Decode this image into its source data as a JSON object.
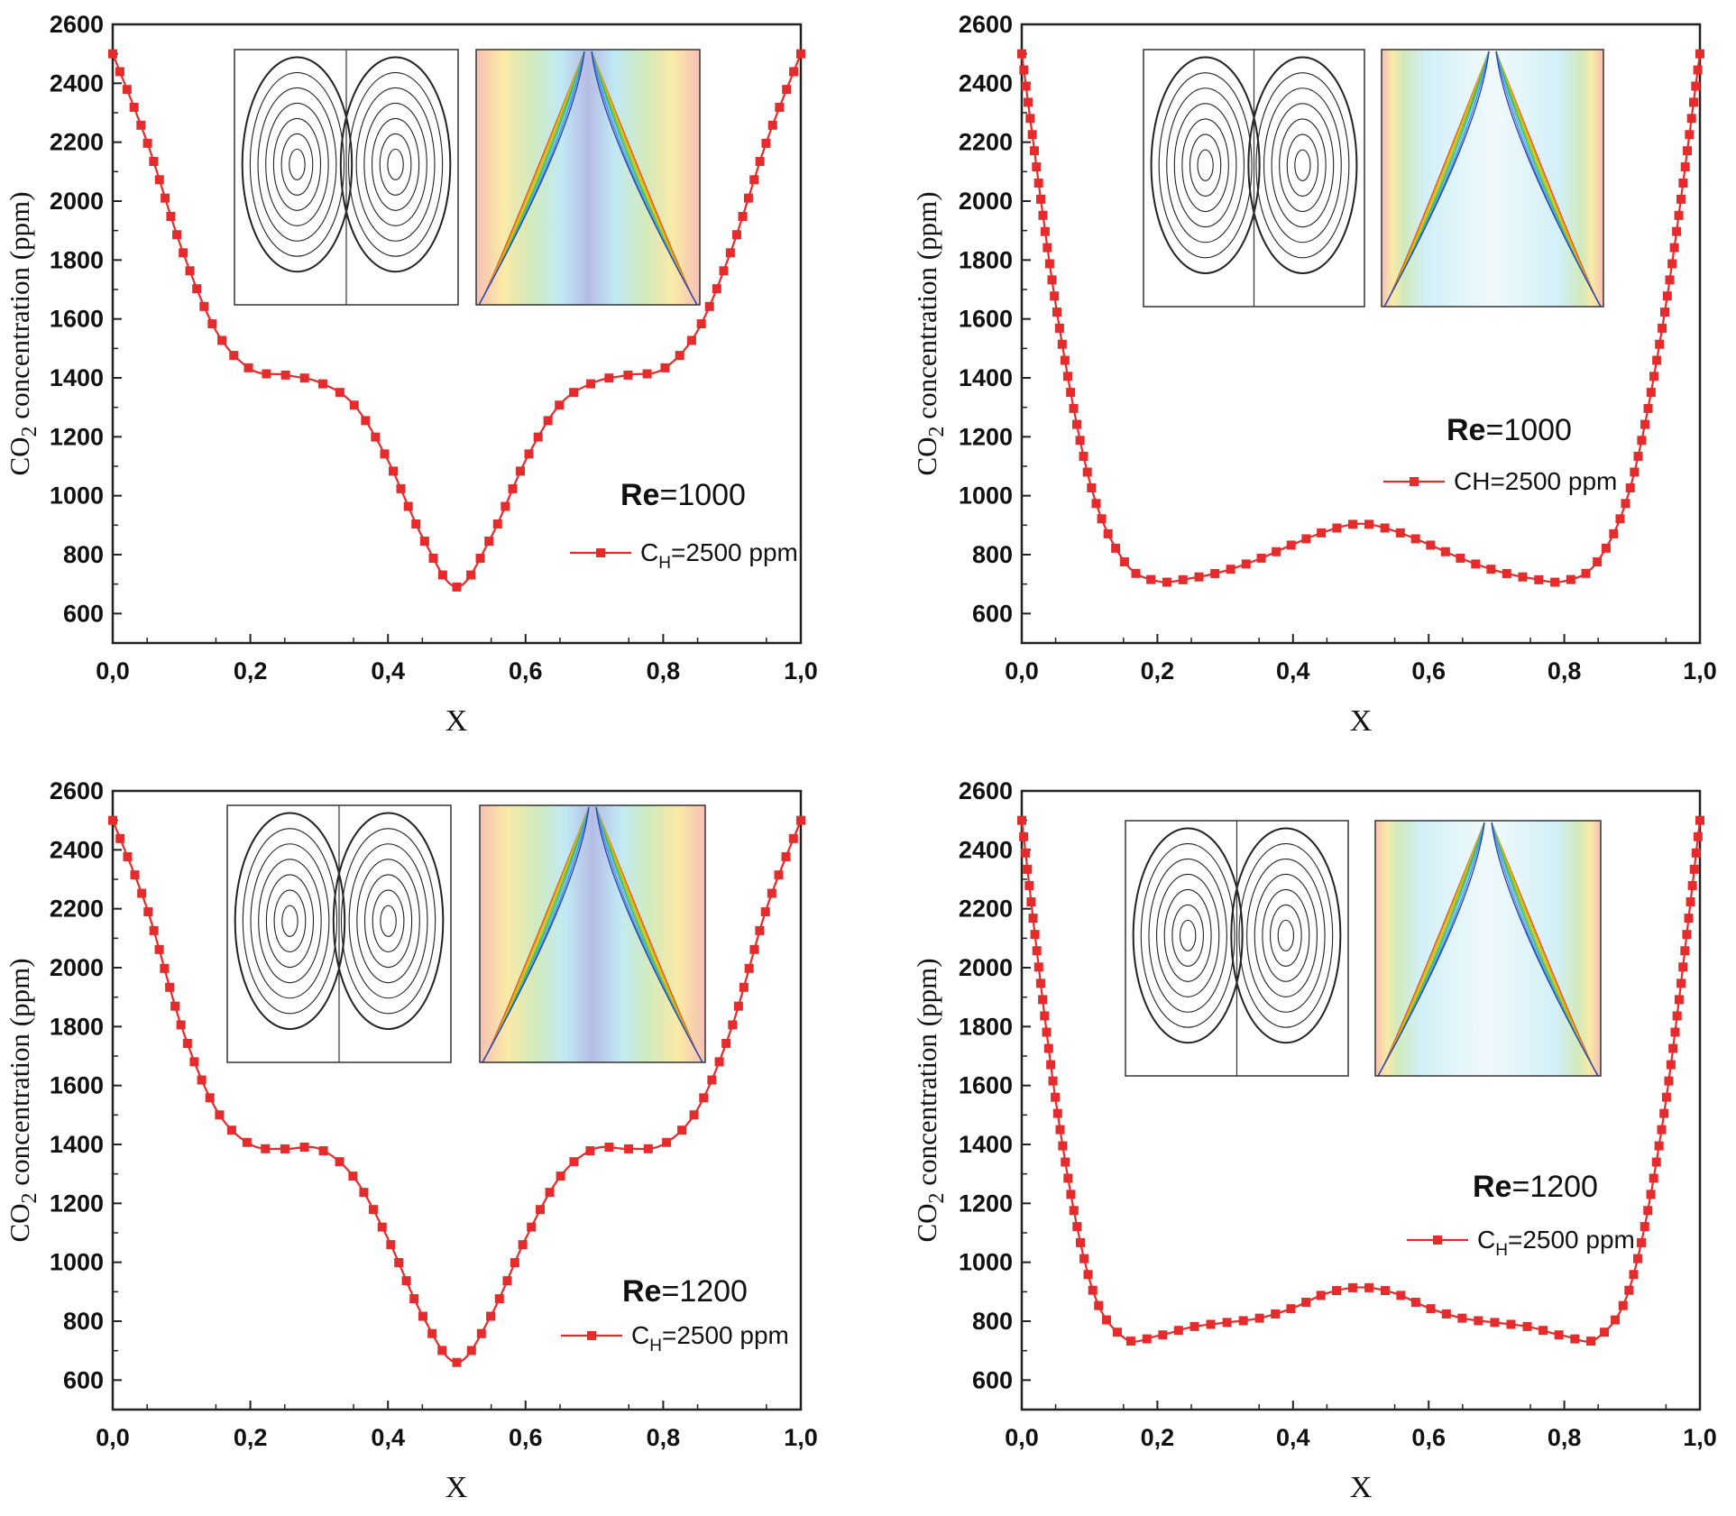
{
  "chart_data": [
    {
      "type": "line",
      "panel": "top-left",
      "title": "",
      "xlabel": "X",
      "ylabel": "CO2 concentration (ppm)",
      "ylabel_parts": {
        "pre": "CO",
        "sub": "2",
        "post": " concentration (ppm)"
      },
      "xlim": [
        0,
        1
      ],
      "ylim": [
        500,
        2600
      ],
      "xticks": [
        "0,0",
        "0,2",
        "0,4",
        "0,6",
        "0,8",
        "1,0"
      ],
      "yticks": [
        "600",
        "800",
        "1000",
        "1200",
        "1400",
        "1600",
        "1800",
        "2000",
        "2200",
        "2400",
        "2600"
      ],
      "annotation": {
        "bold": "Re",
        "rest": "=1000"
      },
      "legend": {
        "pre": "C",
        "sub": "H",
        "post": "=2500 ppm"
      },
      "series_color": "#e52b2b",
      "marker_style": "sparse",
      "x": [
        0.0,
        0.05,
        0.1,
        0.15,
        0.2,
        0.25,
        0.3,
        0.35,
        0.4,
        0.45,
        0.5,
        0.55,
        0.6,
        0.65,
        0.7,
        0.75,
        0.8,
        0.85,
        0.9,
        0.95,
        1.0
      ],
      "values": [
        2500,
        2200,
        1840,
        1560,
        1430,
        1410,
        1385,
        1310,
        1120,
        860,
        690,
        860,
        1120,
        1310,
        1385,
        1410,
        1430,
        1560,
        1840,
        2200,
        2500
      ]
    },
    {
      "type": "line",
      "panel": "top-right",
      "title": "",
      "xlabel": "X",
      "ylabel": "CO2 concentration (ppm)",
      "ylabel_parts": {
        "pre": "CO",
        "sub": "2",
        "post": " concentration (ppm)"
      },
      "xlim": [
        0,
        1
      ],
      "ylim": [
        500,
        2600
      ],
      "xticks": [
        "0,0",
        "0,2",
        "0,4",
        "0,6",
        "0,8",
        "1,0"
      ],
      "yticks": [
        "600",
        "800",
        "1000",
        "1200",
        "1400",
        "1600",
        "1800",
        "2000",
        "2200",
        "2400",
        "2600"
      ],
      "annotation": {
        "bold": "Re",
        "rest": "=1000"
      },
      "legend": {
        "pre": "CH",
        "sub": "",
        "post": "=2500 ppm"
      },
      "series_color": "#e52b2b",
      "marker_style": "dense",
      "x": [
        0.0,
        0.05,
        0.1,
        0.15,
        0.2,
        0.25,
        0.3,
        0.35,
        0.4,
        0.45,
        0.5,
        0.55,
        0.6,
        0.65,
        0.7,
        0.75,
        0.8,
        0.85,
        0.9,
        0.95,
        1.0
      ],
      "values": [
        2500,
        1650,
        1050,
        780,
        710,
        720,
        745,
        785,
        835,
        880,
        905,
        880,
        835,
        785,
        745,
        720,
        710,
        780,
        1050,
        1650,
        2500
      ]
    },
    {
      "type": "line",
      "panel": "bottom-left",
      "title": "",
      "xlabel": "X",
      "ylabel": "CO2 concentration (ppm)",
      "ylabel_parts": {
        "pre": "CO",
        "sub": "2",
        "post": " concentration (ppm)"
      },
      "xlim": [
        0,
        1
      ],
      "ylim": [
        500,
        2600
      ],
      "xticks": [
        "0,0",
        "0,2",
        "0,4",
        "0,6",
        "0,8",
        "1,0"
      ],
      "yticks": [
        "600",
        "800",
        "1000",
        "1200",
        "1400",
        "1600",
        "1800",
        "2000",
        "2200",
        "2400",
        "2600"
      ],
      "annotation": {
        "bold": "Re",
        "rest": "=1200"
      },
      "legend": {
        "pre": "C",
        "sub": "H",
        "post": "=2500 ppm"
      },
      "series_color": "#e52b2b",
      "marker_style": "sparse",
      "x": [
        0.0,
        0.05,
        0.1,
        0.15,
        0.2,
        0.25,
        0.3,
        0.35,
        0.4,
        0.45,
        0.5,
        0.55,
        0.6,
        0.65,
        0.7,
        0.75,
        0.8,
        0.85,
        0.9,
        0.95,
        1.0
      ],
      "values": [
        2500,
        2200,
        1800,
        1520,
        1400,
        1385,
        1385,
        1290,
        1080,
        820,
        660,
        820,
        1080,
        1290,
        1385,
        1385,
        1400,
        1520,
        1800,
        2200,
        2500
      ]
    },
    {
      "type": "line",
      "panel": "bottom-right",
      "title": "",
      "xlabel": "X",
      "ylabel": "CO2 concentration (ppm)",
      "ylabel_parts": {
        "pre": "CO",
        "sub": "2",
        "post": " concentration (ppm)"
      },
      "xlim": [
        0,
        1
      ],
      "ylim": [
        500,
        2600
      ],
      "xticks": [
        "0,0",
        "0,2",
        "0,4",
        "0,6",
        "0,8",
        "1,0"
      ],
      "yticks": [
        "600",
        "800",
        "1000",
        "1200",
        "1400",
        "1600",
        "1800",
        "2000",
        "2200",
        "2400",
        "2600"
      ],
      "annotation": {
        "bold": "Re",
        "rest": "=1200"
      },
      "legend": {
        "pre": "C",
        "sub": "H",
        "post": "=2500 ppm"
      },
      "series_color": "#e52b2b",
      "marker_style": "dense",
      "x": [
        0.0,
        0.05,
        0.1,
        0.15,
        0.2,
        0.25,
        0.3,
        0.35,
        0.4,
        0.45,
        0.5,
        0.55,
        0.6,
        0.65,
        0.7,
        0.75,
        0.8,
        0.85,
        0.9,
        0.95,
        1.0
      ],
      "values": [
        2500,
        1550,
        940,
        745,
        750,
        780,
        795,
        810,
        845,
        895,
        915,
        895,
        845,
        810,
        795,
        780,
        750,
        745,
        940,
        1550,
        2500
      ]
    }
  ]
}
